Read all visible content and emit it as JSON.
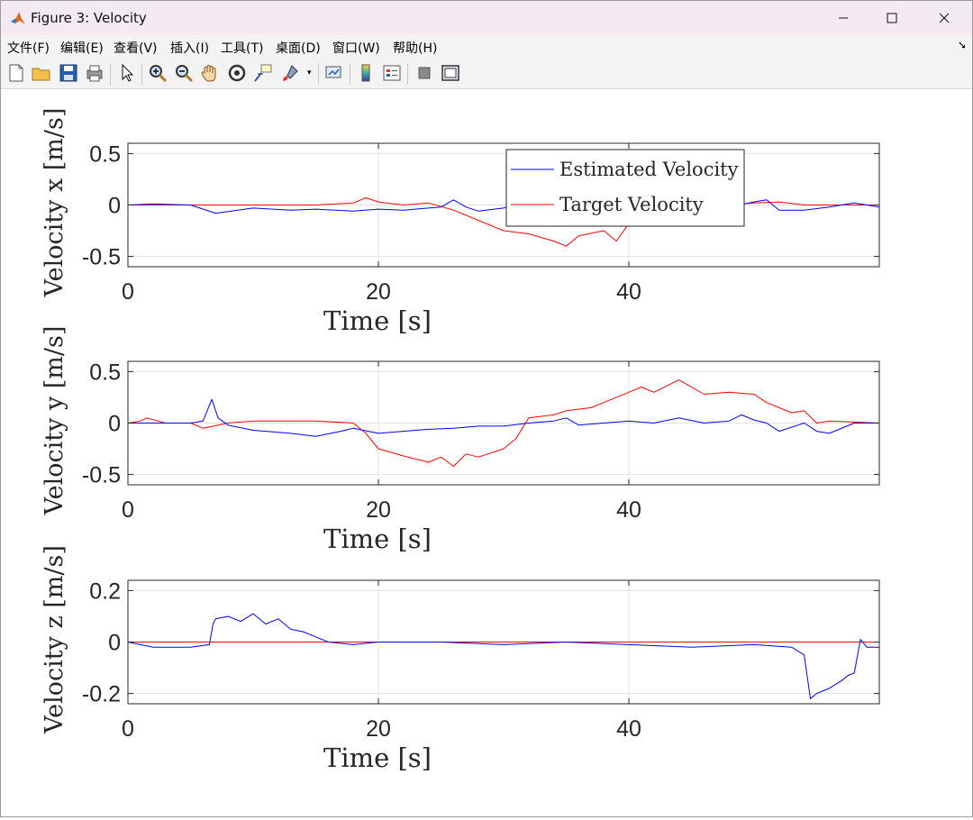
{
  "window": {
    "title": "Figure 3: Velocity",
    "minimize_icon": "minimize-icon",
    "maximize_icon": "maximize-icon",
    "close_icon": "close-icon"
  },
  "menu": [
    "文件(F)",
    "编辑(E)",
    "查看(V)",
    "插入(I)",
    "工具(T)",
    "桌面(D)",
    "窗口(W)",
    "帮助(H)"
  ],
  "toolbar": [
    "new-figure-icon",
    "open-icon",
    "save-icon",
    "print-icon",
    "pointer-icon",
    "zoom-in-icon",
    "zoom-out-icon",
    "pan-icon",
    "rotate-3d-icon",
    "data-cursor-icon",
    "brush-icon",
    "link-plot-icon",
    "colorbar-icon",
    "legend-icon",
    "hide-plot-tools-icon",
    "show-plot-tools-icon"
  ],
  "colors": {
    "estimated": "#0000ff",
    "target": "#ff0000"
  },
  "chart_data": [
    {
      "type": "line",
      "ylabel": "Velocity x [m/s]",
      "xlabel": "Time [s]",
      "xlim": [
        0,
        60
      ],
      "ylim": [
        -0.6,
        0.6
      ],
      "xticks": [
        "0",
        "20",
        "40"
      ],
      "yticks": [
        "0.5",
        "0",
        "-0.5"
      ],
      "yticks_values": [
        0.5,
        0,
        -0.5
      ],
      "grid": true,
      "legend": {
        "placement": "top-right",
        "entries": [
          "Estimated Velocity",
          "Target Velocity"
        ]
      },
      "series": [
        {
          "name": "Estimated Velocity",
          "color": "#0000ff",
          "x": [
            0,
            2,
            5,
            7,
            10,
            13,
            15,
            18,
            20,
            22,
            24,
            25,
            26,
            27,
            28,
            30,
            32,
            35,
            37,
            38,
            40,
            42,
            44,
            46,
            48,
            50,
            51,
            52,
            54,
            56,
            58,
            60
          ],
          "y": [
            0,
            0.01,
            0,
            -0.08,
            -0.03,
            -0.05,
            -0.04,
            -0.06,
            -0.04,
            -0.05,
            -0.03,
            -0.02,
            0.05,
            -0.02,
            -0.06,
            -0.03,
            0.05,
            0.02,
            -0.02,
            -0.08,
            0.02,
            0.05,
            0,
            0.02,
            -0.02,
            0.03,
            0.05,
            -0.05,
            -0.05,
            -0.02,
            0.02,
            -0.02
          ]
        },
        {
          "name": "Target Velocity",
          "color": "#ff0000",
          "x": [
            0,
            5,
            10,
            15,
            18,
            19,
            20,
            22,
            24,
            26,
            28,
            30,
            32,
            34,
            35,
            36,
            38,
            39,
            40,
            42,
            44,
            46,
            48,
            50,
            52,
            54,
            56,
            60
          ],
          "y": [
            0,
            0,
            0,
            0,
            0.02,
            0.07,
            0.03,
            0,
            0.02,
            -0.05,
            -0.15,
            -0.25,
            -0.28,
            -0.35,
            -0.4,
            -0.3,
            -0.25,
            -0.35,
            -0.18,
            -0.1,
            0.05,
            0.03,
            0,
            0.02,
            0.03,
            0,
            0,
            0
          ]
        }
      ]
    },
    {
      "type": "line",
      "ylabel": "Velocity y [m/s]",
      "xlabel": "Time [s]",
      "xlim": [
        0,
        60
      ],
      "ylim": [
        -0.6,
        0.6
      ],
      "xticks": [
        "0",
        "20",
        "40"
      ],
      "yticks": [
        "0.5",
        "0",
        "-0.5"
      ],
      "yticks_values": [
        0.5,
        0,
        -0.5
      ],
      "grid": true,
      "series": [
        {
          "name": "Estimated Velocity",
          "color": "#0000ff",
          "x": [
            0,
            2,
            5,
            6,
            6.7,
            7.2,
            8,
            10,
            13,
            15,
            17,
            18,
            20,
            22,
            24,
            26,
            28,
            30,
            32,
            34,
            35,
            36,
            38,
            40,
            42,
            44,
            46,
            48,
            49,
            50,
            51,
            52,
            54,
            55,
            56,
            58,
            60
          ],
          "y": [
            0,
            0,
            0,
            0.02,
            0.23,
            0.05,
            -0.02,
            -0.07,
            -0.1,
            -0.13,
            -0.08,
            -0.05,
            -0.1,
            -0.08,
            -0.06,
            -0.05,
            -0.03,
            -0.03,
            0,
            0.02,
            0.05,
            -0.02,
            0,
            0.02,
            0,
            0.05,
            0,
            0.02,
            0.08,
            0.03,
            0,
            -0.08,
            0,
            -0.08,
            -0.1,
            0,
            0
          ]
        },
        {
          "name": "Target Velocity",
          "color": "#ff0000",
          "x": [
            0,
            1,
            1.5,
            3,
            5,
            6,
            8,
            10,
            15,
            18,
            19,
            20,
            22,
            24,
            25,
            26,
            27,
            28,
            30,
            31,
            32,
            34,
            35,
            37,
            38,
            40,
            41,
            42,
            44,
            45,
            46,
            48,
            50,
            51,
            52,
            53,
            54,
            55,
            56,
            60
          ],
          "y": [
            0,
            0.02,
            0.05,
            0,
            0,
            -0.05,
            0,
            0.02,
            0.02,
            0,
            -0.1,
            -0.25,
            -0.32,
            -0.38,
            -0.33,
            -0.42,
            -0.3,
            -0.33,
            -0.25,
            -0.15,
            0.05,
            0.08,
            0.12,
            0.15,
            0.2,
            0.3,
            0.35,
            0.3,
            0.42,
            0.35,
            0.28,
            0.3,
            0.28,
            0.2,
            0.15,
            0.1,
            0.12,
            0,
            0.02,
            0
          ]
        }
      ]
    },
    {
      "type": "line",
      "ylabel": "Velocity z [m/s]",
      "xlabel": "Time [s]",
      "xlim": [
        0,
        60
      ],
      "ylim": [
        -0.24,
        0.24
      ],
      "xticks": [
        "0",
        "20",
        "40"
      ],
      "yticks": [
        "0.2",
        "0",
        "-0.2"
      ],
      "yticks_values": [
        0.2,
        0,
        -0.2
      ],
      "grid": true,
      "series": [
        {
          "name": "Estimated Velocity",
          "color": "#0000ff",
          "x": [
            0,
            2,
            5,
            6.5,
            6.8,
            7,
            8,
            9,
            10,
            11,
            12,
            13,
            14,
            15,
            16,
            18,
            20,
            25,
            30,
            35,
            40,
            45,
            50,
            53,
            54,
            54.5,
            55,
            56,
            57,
            57.5,
            58,
            58.5,
            59,
            60
          ],
          "y": [
            0,
            -0.02,
            -0.02,
            -0.01,
            0.07,
            0.09,
            0.1,
            0.08,
            0.11,
            0.07,
            0.09,
            0.05,
            0.04,
            0.02,
            0,
            -0.01,
            0,
            0,
            -0.01,
            0,
            -0.01,
            -0.02,
            -0.01,
            -0.02,
            -0.05,
            -0.22,
            -0.2,
            -0.18,
            -0.15,
            -0.13,
            -0.12,
            0.01,
            -0.02,
            -0.02
          ]
        },
        {
          "name": "Target Velocity",
          "color": "#ff0000",
          "x": [
            0,
            10,
            20,
            30,
            40,
            50,
            60
          ],
          "y": [
            0,
            0,
            0,
            0,
            0,
            0,
            0
          ]
        }
      ]
    }
  ]
}
